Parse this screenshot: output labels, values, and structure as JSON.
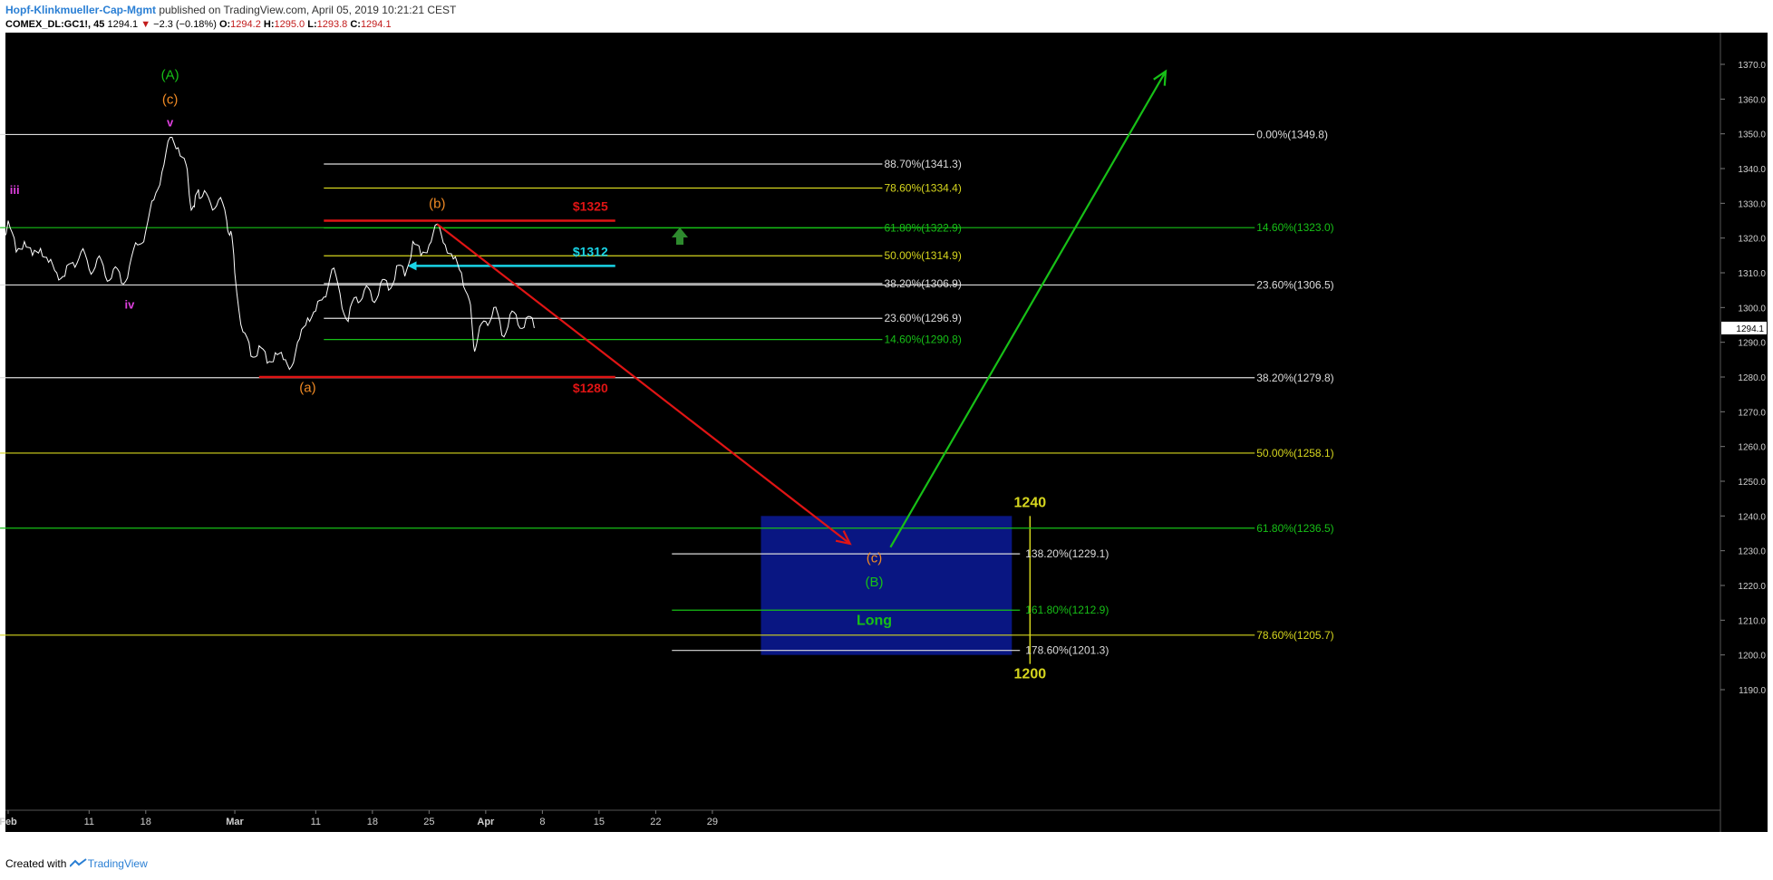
{
  "header": {
    "author": "Hopf-Klinkmueller-Cap-Mgmt",
    "published": " published on TradingView.com, April 05, 2019 10:21:21 CEST",
    "symbol": "COMEX_DL:GC1!, 45",
    "last": "1294.1",
    "change_arrow": "▼",
    "change": "−2.3 (−0.18%)",
    "o_label": "O:",
    "o": "1294.2",
    "h_label": "H:",
    "h": "1295.0",
    "l_label": "L:",
    "l": "1293.8",
    "c_label": "C:",
    "c": "1294.1"
  },
  "footer": {
    "created_with": "Created with",
    "brand": "TradingView"
  },
  "colors": {
    "background": "#000000",
    "price": "#ffffff",
    "white_line": "#dcdcdc",
    "green": "#17c017",
    "yellow": "#d6d61e",
    "red": "#e01414",
    "cyan": "#19d4e6",
    "orange": "#f08a24",
    "magenta": "#e040e0",
    "long_box": "#0a1890"
  },
  "chart_data": {
    "type": "line",
    "title": "",
    "ylim": [
      1190,
      1375
    ],
    "y_ticks": [
      "1190.0",
      "1200.0",
      "1210.0",
      "1220.0",
      "1230.0",
      "1240.0",
      "1250.0",
      "1260.0",
      "1270.0",
      "1280.0",
      "1290.0",
      "1300.0",
      "1310.0",
      "1320.0",
      "1330.0",
      "1340.0",
      "1350.0",
      "1360.0",
      "1370.0"
    ],
    "x_ticks": [
      {
        "label": "Feb",
        "day": 0
      },
      {
        "label": "11",
        "day": 10
      },
      {
        "label": "18",
        "day": 17
      },
      {
        "label": "Mar",
        "day": 28
      },
      {
        "label": "11",
        "day": 38
      },
      {
        "label": "18",
        "day": 45
      },
      {
        "label": "25",
        "day": 52
      },
      {
        "label": "Apr",
        "day": 59
      },
      {
        "label": "8",
        "day": 66
      },
      {
        "label": "15",
        "day": 73
      },
      {
        "label": "22",
        "day": 80
      },
      {
        "label": "29",
        "day": 87
      }
    ],
    "last_price": "1294.1",
    "series": [
      {
        "values": [
          [
            -1,
            1318
          ],
          [
            0,
            1325
          ],
          [
            1,
            1316
          ],
          [
            2,
            1319
          ],
          [
            3,
            1315
          ],
          [
            4,
            1317
          ],
          [
            5,
            1313
          ],
          [
            6,
            1310
          ],
          [
            7,
            1309
          ],
          [
            8,
            1313
          ],
          [
            9,
            1316
          ],
          [
            10,
            1311
          ],
          [
            11,
            1314
          ],
          [
            12,
            1309
          ],
          [
            13,
            1311
          ],
          [
            14,
            1307
          ],
          [
            15,
            1312
          ],
          [
            16,
            1318
          ],
          [
            17,
            1322
          ],
          [
            18,
            1331
          ],
          [
            19,
            1339
          ],
          [
            20,
            1349
          ],
          [
            21,
            1346
          ],
          [
            22,
            1341
          ],
          [
            22.5,
            1330
          ],
          [
            23,
            1329
          ],
          [
            23.5,
            1334
          ],
          [
            24,
            1332
          ],
          [
            25,
            1330
          ],
          [
            26,
            1331
          ],
          [
            27,
            1325
          ],
          [
            27.5,
            1322
          ],
          [
            28,
            1310
          ],
          [
            29,
            1293
          ],
          [
            30,
            1286
          ],
          [
            31,
            1289
          ],
          [
            32,
            1284
          ],
          [
            33,
            1287
          ],
          [
            34,
            1285
          ],
          [
            35,
            1283
          ],
          [
            36,
            1291
          ],
          [
            37,
            1297
          ],
          [
            38,
            1299
          ],
          [
            39,
            1303
          ],
          [
            40,
            1311
          ],
          [
            41,
            1304
          ],
          [
            42,
            1296
          ],
          [
            43,
            1303
          ],
          [
            44,
            1305
          ],
          [
            45,
            1302
          ],
          [
            46,
            1307
          ],
          [
            47,
            1305
          ],
          [
            48,
            1312
          ],
          [
            49,
            1309
          ],
          [
            50,
            1319
          ],
          [
            51,
            1315
          ],
          [
            52,
            1318
          ],
          [
            53,
            1324
          ],
          [
            54,
            1318
          ],
          [
            55,
            1314
          ],
          [
            56,
            1310
          ],
          [
            57,
            1302
          ],
          [
            57.5,
            1289
          ],
          [
            58,
            1291
          ],
          [
            59,
            1296
          ],
          [
            60,
            1300
          ],
          [
            61,
            1292
          ],
          [
            62,
            1298
          ],
          [
            63,
            1295
          ],
          [
            64,
            1297
          ],
          [
            65,
            1294.1
          ]
        ]
      }
    ],
    "fib_levels": [
      {
        "label": "0.00%(1349.8)",
        "value": 1349.8,
        "color": "white",
        "d0": -1,
        "d1": 154
      },
      {
        "label": "88.70%(1341.3)",
        "value": 1341.3,
        "color": "white",
        "d0": 39,
        "d1": 108,
        "label_side": "inner"
      },
      {
        "label": "78.60%(1334.4)",
        "value": 1334.4,
        "color": "yellow",
        "d0": 39,
        "d1": 108,
        "label_side": "inner"
      },
      {
        "label": "61.80%(1322.9)",
        "value": 1322.9,
        "color": "green",
        "d0": 39,
        "d1": 108,
        "label_side": "inner"
      },
      {
        "label": "14.60%(1323.0)",
        "value": 1323.0,
        "color": "green",
        "d0": -1,
        "d1": 154
      },
      {
        "label": "50.00%(1314.9)",
        "value": 1314.9,
        "color": "yellow",
        "d0": 39,
        "d1": 108,
        "label_side": "inner"
      },
      {
        "label": "38.20%(1306.9)",
        "value": 1306.9,
        "color": "white",
        "d0": 39,
        "d1": 108,
        "label_side": "inner"
      },
      {
        "label": "23.60%(1306.5)",
        "value": 1306.5,
        "color": "white",
        "d0": -1,
        "d1": 154
      },
      {
        "label": "23.60%(1296.9)",
        "value": 1296.9,
        "color": "white",
        "d0": 39,
        "d1": 108,
        "label_side": "inner"
      },
      {
        "label": "14.60%(1290.8)",
        "value": 1290.8,
        "color": "green",
        "d0": 39,
        "d1": 108,
        "label_side": "inner"
      },
      {
        "label": "38.20%(1279.8)",
        "value": 1279.8,
        "color": "white",
        "d0": -1,
        "d1": 154
      },
      {
        "label": "50.00%(1258.1)",
        "value": 1258.1,
        "color": "yellow",
        "d0": -1,
        "d1": 154
      },
      {
        "label": "61.80%(1236.5)",
        "value": 1236.5,
        "color": "green",
        "d0": -1,
        "d1": 154
      },
      {
        "label": "138.20%(1229.1)",
        "value": 1229.1,
        "color": "white",
        "d0": 82,
        "d1": 125,
        "label_side": "right"
      },
      {
        "label": "161.80%(1212.9)",
        "value": 1212.9,
        "color": "green",
        "d0": 82,
        "d1": 125,
        "label_side": "right"
      },
      {
        "label": "78.60%(1205.7)",
        "value": 1205.7,
        "color": "yellow",
        "d0": -1,
        "d1": 154
      },
      {
        "label": "178.60%(1201.3)",
        "value": 1201.3,
        "color": "white",
        "d0": 82,
        "d1": 125,
        "label_side": "right"
      }
    ],
    "levels": [
      {
        "label": "$1325",
        "value": 1325,
        "color": "red",
        "d0": 39,
        "d1": 75
      },
      {
        "label": "$1312",
        "value": 1312,
        "color": "cyan",
        "d0": 50,
        "d1": 75
      },
      {
        "label": "$1280",
        "value": 1280,
        "color": "red",
        "d0": 31,
        "d1": 75
      }
    ],
    "wave_labels": [
      {
        "text": "(A)",
        "day": 20,
        "value": 1367,
        "color": "green"
      },
      {
        "text": "(c)",
        "day": 20,
        "value": 1360,
        "color": "orange"
      },
      {
        "text": "v",
        "day": 20,
        "value": 1353.5,
        "color": "magenta"
      },
      {
        "text": "iii",
        "day": 0.8,
        "value": 1334,
        "color": "magenta"
      },
      {
        "text": "iv",
        "day": 15,
        "value": 1301,
        "color": "magenta"
      },
      {
        "text": "(a)",
        "day": 37,
        "value": 1277,
        "color": "orange"
      },
      {
        "text": "(b)",
        "day": 53,
        "value": 1330,
        "color": "orange"
      },
      {
        "text": "(c)",
        "day": 107,
        "value": 1228,
        "color": "orange"
      },
      {
        "text": "(B)",
        "day": 107,
        "value": 1221,
        "color": "green"
      },
      {
        "text": "Long",
        "day": 107,
        "value": 1210,
        "color": "green"
      }
    ],
    "target_zone": {
      "label_top": "1240",
      "label_bottom": "1200",
      "top": 1240,
      "bottom": 1200,
      "d0": 93,
      "d1": 124
    },
    "projections": [
      {
        "from": [
          53,
          1324
        ],
        "to": [
          104,
          1232
        ],
        "color": "red"
      },
      {
        "from": [
          109,
          1231
        ],
        "to": [
          143,
          1368
        ],
        "color": "green"
      }
    ]
  }
}
